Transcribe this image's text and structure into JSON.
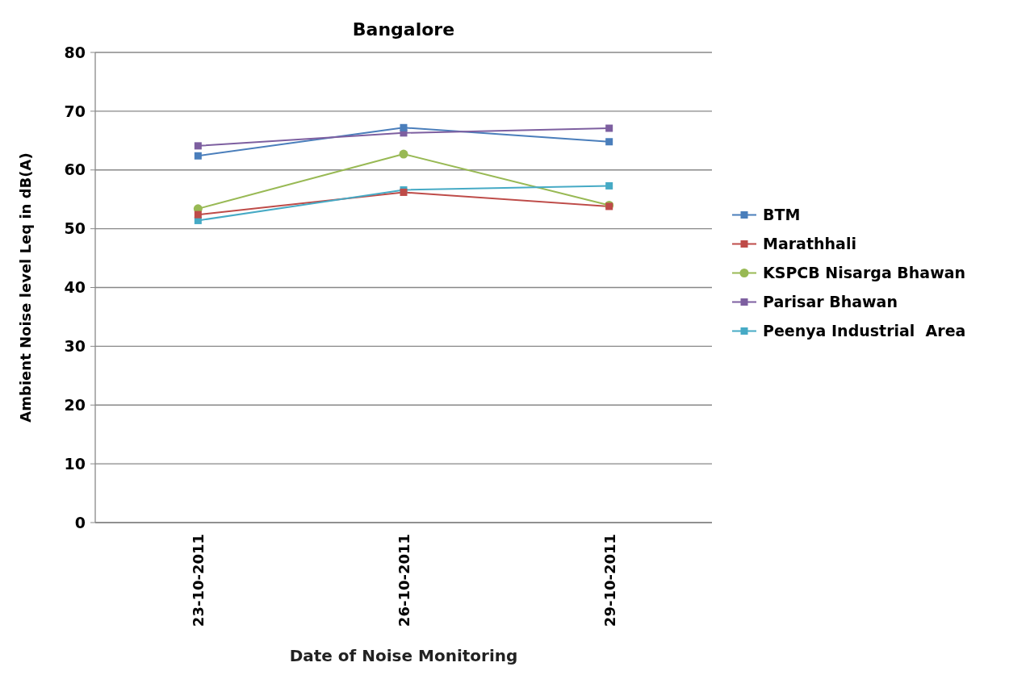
{
  "chart_data": {
    "type": "line",
    "title": "Bangalore",
    "xlabel": "Date of Noise Monitoring",
    "ylabel": "Ambient Noise level Leq in dB(A)",
    "categories": [
      "23-10-2011",
      "26-10-2011",
      "29-10-2011"
    ],
    "ylim": [
      0,
      80
    ],
    "yticks": [
      0,
      10,
      20,
      30,
      40,
      50,
      60,
      70,
      80
    ],
    "grid": "y",
    "legend": "right",
    "marker": "square",
    "series": [
      {
        "name": "BTM",
        "color": "#4a7ebb",
        "values": [
          62.4,
          67.2,
          64.8
        ]
      },
      {
        "name": "Marathhali",
        "color": "#be4b48",
        "values": [
          52.4,
          56.2,
          53.8
        ]
      },
      {
        "name": "KSPCB Nisarga Bhawan",
        "color": "#98b954",
        "values": [
          53.4,
          62.7,
          54.0
        ],
        "marker": "circle"
      },
      {
        "name": "Parisar Bhawan",
        "color": "#7d5fa0",
        "values": [
          64.1,
          66.3,
          67.1
        ]
      },
      {
        "name": "Peenya Industrial  Area",
        "color": "#46aac5",
        "values": [
          51.4,
          56.6,
          57.3
        ]
      }
    ]
  }
}
